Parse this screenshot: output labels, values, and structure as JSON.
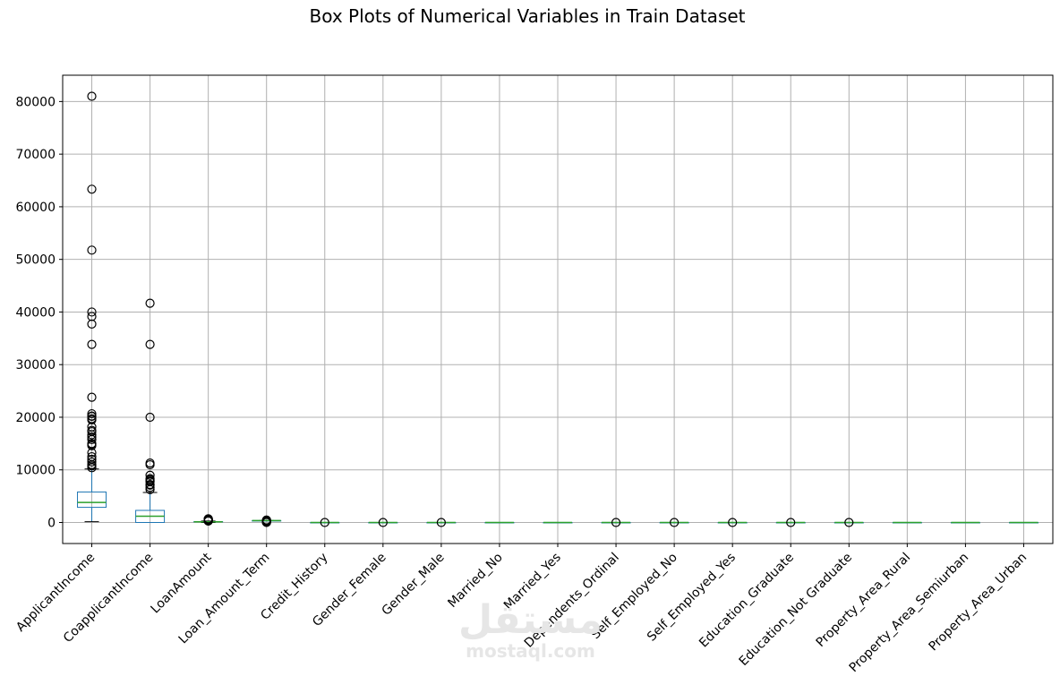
{
  "chart_data": {
    "type": "box",
    "title": "Box Plots of Numerical Variables in Train Dataset",
    "xlabel": "",
    "ylabel": "",
    "ylim": [
      -4000,
      85000
    ],
    "yticks": [
      0,
      10000,
      20000,
      30000,
      40000,
      50000,
      60000,
      70000,
      80000
    ],
    "ytick_labels": [
      "0",
      "10000",
      "20000",
      "30000",
      "40000",
      "50000",
      "60000",
      "70000",
      "80000"
    ],
    "grid": true,
    "colors": {
      "box": "#1f77b4",
      "median": "#2ca02c",
      "whisker": "#1f77b4",
      "flier": "#000000",
      "grid": "#b0b0b0"
    },
    "categories": [
      "ApplicantIncome",
      "CoapplicantIncome",
      "LoanAmount",
      "Loan_Amount_Term",
      "Credit_History",
      "Gender_Female",
      "Gender_Male",
      "Married_No",
      "Married_Yes",
      "Dependents_Ordinal",
      "Self_Employed_No",
      "Self_Employed_Yes",
      "Education_Graduate",
      "Education_Not Graduate",
      "Property_Area_Rural",
      "Property_Area_Semiurban",
      "Property_Area_Urban"
    ],
    "boxes": [
      {
        "whislo": 150,
        "q1": 2877,
        "med": 3813,
        "q3": 5795,
        "whishi": 10171,
        "fliers": [
          10408,
          10750,
          11000,
          11500,
          12000,
          12500,
          13262,
          14583,
          14866,
          15000,
          15759,
          16250,
          16667,
          17263,
          17500,
          18165,
          19484,
          19730,
          20166,
          20233,
          20667,
          23803,
          33846,
          37719,
          39147,
          39999,
          51763,
          63337,
          81000
        ]
      },
      {
        "whislo": 0,
        "q1": 0,
        "med": 1188,
        "q3": 2297,
        "whishi": 5701,
        "fliers": [
          6250,
          6666,
          7101,
          7210,
          7750,
          7873,
          8106,
          8333,
          8980,
          10968,
          11300,
          20000,
          33837,
          41667
        ]
      },
      {
        "whislo": 9,
        "q1": 100,
        "med": 128,
        "q3": 168,
        "whishi": 267,
        "fliers": [
          280,
          300,
          320,
          350,
          380,
          400,
          436,
          480,
          500,
          570,
          600,
          650,
          700
        ]
      },
      {
        "whislo": 360,
        "q1": 360,
        "med": 360,
        "q3": 360,
        "whishi": 360,
        "fliers": [
          12,
          36,
          60,
          84,
          120,
          180,
          240,
          300,
          480
        ]
      },
      {
        "whislo": 1,
        "q1": 1,
        "med": 1,
        "q3": 1,
        "whishi": 1,
        "fliers": [
          0
        ]
      },
      {
        "whislo": 0,
        "q1": 0,
        "med": 0,
        "q3": 0,
        "whishi": 0,
        "fliers": [
          1
        ]
      },
      {
        "whislo": 1,
        "q1": 1,
        "med": 1,
        "q3": 1,
        "whishi": 1,
        "fliers": [
          0
        ]
      },
      {
        "whislo": 0,
        "q1": 0,
        "med": 0,
        "q3": 1,
        "whishi": 1,
        "fliers": []
      },
      {
        "whislo": 0,
        "q1": 0,
        "med": 1,
        "q3": 1,
        "whishi": 1,
        "fliers": []
      },
      {
        "whislo": 0,
        "q1": 0,
        "med": 0,
        "q3": 1,
        "whishi": 2,
        "fliers": [
          3
        ]
      },
      {
        "whislo": 1,
        "q1": 1,
        "med": 1,
        "q3": 1,
        "whishi": 1,
        "fliers": [
          0
        ]
      },
      {
        "whislo": 0,
        "q1": 0,
        "med": 0,
        "q3": 0,
        "whishi": 0,
        "fliers": [
          1
        ]
      },
      {
        "whislo": 1,
        "q1": 1,
        "med": 1,
        "q3": 1,
        "whishi": 1,
        "fliers": [
          0
        ]
      },
      {
        "whislo": 0,
        "q1": 0,
        "med": 0,
        "q3": 0,
        "whishi": 0,
        "fliers": [
          1
        ]
      },
      {
        "whislo": 0,
        "q1": 0,
        "med": 0,
        "q3": 1,
        "whishi": 1,
        "fliers": []
      },
      {
        "whislo": 0,
        "q1": 0,
        "med": 0,
        "q3": 1,
        "whishi": 1,
        "fliers": []
      },
      {
        "whislo": 0,
        "q1": 0,
        "med": 0,
        "q3": 1,
        "whishi": 1,
        "fliers": []
      }
    ]
  },
  "watermark": {
    "logo_text": "مستقل",
    "site": "mostaql.com"
  }
}
